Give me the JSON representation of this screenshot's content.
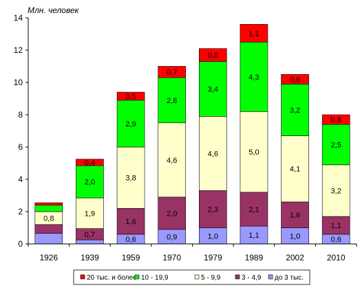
{
  "chart_data": {
    "type": "bar",
    "stacked": true,
    "title": "",
    "unit_label": "Млн. человек",
    "xlabel": "",
    "ylabel": "",
    "ylim": [
      0,
      14
    ],
    "yticks": [
      "0",
      "2",
      "4",
      "6",
      "8",
      "10",
      "12",
      "14"
    ],
    "grid": false,
    "legend_position": "bottom",
    "categories": [
      "1926",
      "1939",
      "1959",
      "1970",
      "1979",
      "1989",
      "2002",
      "2010"
    ],
    "series": [
      {
        "name": "до 3 тыс.",
        "color": "#9999ff",
        "values": [
          0.65,
          0.25,
          0.6,
          0.9,
          1.0,
          1.1,
          1.0,
          0.6
        ],
        "labels": [
          "",
          "",
          "0,6",
          "0,9",
          "1,0",
          "1,1",
          "1,0",
          "0,6"
        ]
      },
      {
        "name": "3 - 4,9",
        "color": "#993366",
        "values": [
          0.55,
          0.7,
          1.6,
          2.0,
          2.3,
          2.1,
          1.6,
          1.1
        ],
        "labels": [
          "",
          "0,7",
          "1,6",
          "2,0",
          "2,3",
          "2,1",
          "1,6",
          "1,1"
        ]
      },
      {
        "name": "5 - 9,9",
        "color": "#ffffcc",
        "values": [
          0.8,
          1.9,
          3.8,
          4.6,
          4.6,
          5.0,
          4.1,
          3.2
        ],
        "labels": [
          "0,8",
          "1,9",
          "3,8",
          "4,6",
          "4,6",
          "5,0",
          "4,1",
          "3,2"
        ]
      },
      {
        "name": "10 - 19,9",
        "color": "#00ff00",
        "values": [
          0.4,
          2.0,
          2.9,
          2.8,
          3.4,
          4.3,
          3.2,
          2.5
        ],
        "labels": [
          "",
          "2,0",
          "2,9",
          "2,8",
          "3,4",
          "4,3",
          "3,2",
          "2,5"
        ]
      },
      {
        "name": "20 тыс. и более",
        "color": "#ff0000",
        "values": [
          0.15,
          0.4,
          0.5,
          0.7,
          0.8,
          1.1,
          0.6,
          0.6
        ],
        "labels": [
          "",
          "0,4",
          "0,5",
          "0,7",
          "0,8",
          "1,1",
          "0,6",
          "0,6"
        ]
      }
    ]
  }
}
